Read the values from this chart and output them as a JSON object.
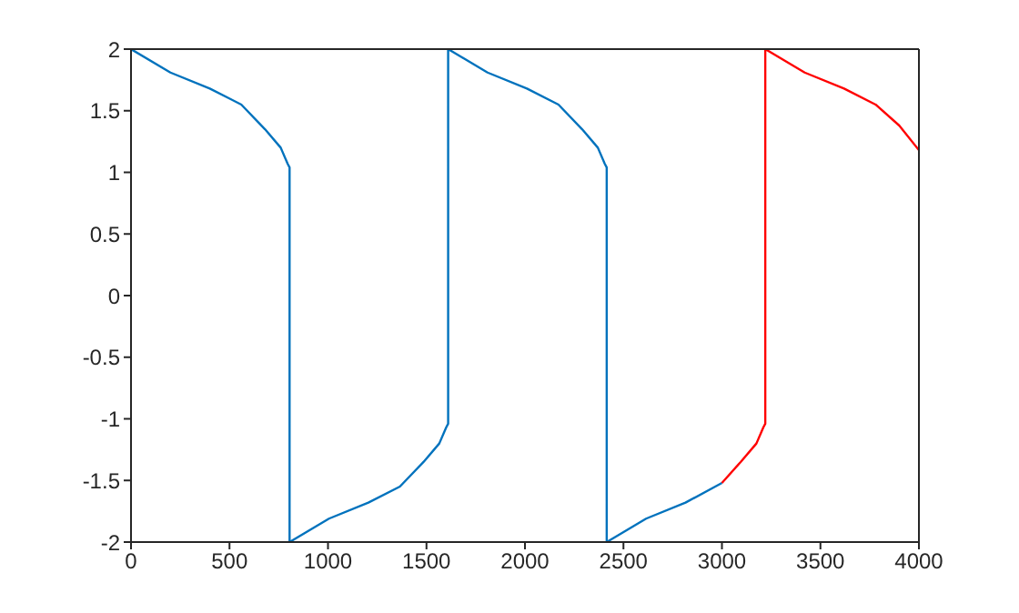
{
  "chart_data": {
    "type": "line",
    "xlim": [
      0,
      4000
    ],
    "xticks": [
      0,
      500,
      1000,
      1500,
      2000,
      2500,
      3000,
      3500,
      4000
    ],
    "ylim": [
      -2,
      2
    ],
    "yticks": [
      -2,
      -1.5,
      -1,
      -0.5,
      0,
      0.5,
      1,
      1.5,
      2
    ],
    "marker": "none",
    "line_style": "solid",
    "series": [
      {
        "color": "#0072bd",
        "x": [
          0,
          200,
          400,
          560,
          680,
          760,
          795,
          805,
          805,
          1005,
          1205,
          1365,
          1485,
          1565,
          1600,
          1610,
          1610,
          1810,
          2010,
          2170,
          2290,
          2370,
          2405,
          2415,
          2415,
          2615,
          2815,
          3000
        ],
        "values": [
          2,
          1.81,
          1.68,
          1.55,
          1.35,
          1.2,
          1.07,
          1.04,
          -2,
          -1.81,
          -1.68,
          -1.55,
          -1.35,
          -1.2,
          -1.07,
          -1.04,
          2,
          1.81,
          1.68,
          1.55,
          1.35,
          1.2,
          1.07,
          1.04,
          -2,
          -1.81,
          -1.68,
          -1.52
        ]
      },
      {
        "color": "#ff0000",
        "x": [
          3000,
          3095,
          3175,
          3210,
          3220,
          3220,
          3420,
          3620,
          3780,
          3900,
          4000
        ],
        "values": [
          -1.52,
          -1.35,
          -1.2,
          -1.07,
          -1.04,
          2,
          1.81,
          1.68,
          1.55,
          1.38,
          1.18
        ]
      }
    ]
  }
}
